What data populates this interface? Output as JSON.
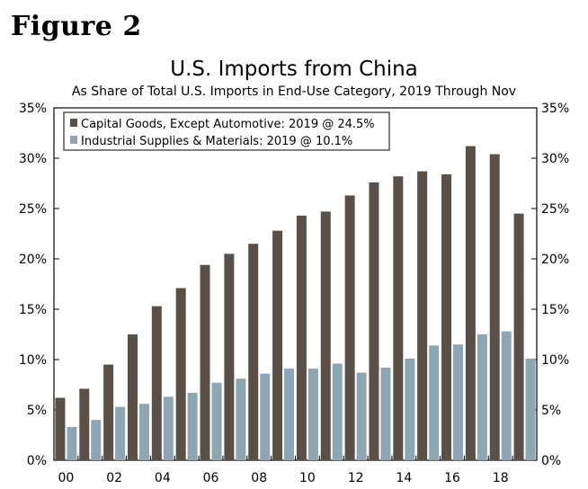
{
  "figure_label": "Figure 2",
  "chart_data": {
    "type": "bar",
    "title": "U.S. Imports from China",
    "subtitle": "As Share of Total U.S. Imports in End-Use Category, 2019 Through Nov",
    "xlabel": "",
    "ylabel": "",
    "ylim": [
      0,
      35
    ],
    "y_ticks": [
      0,
      5,
      10,
      15,
      20,
      25,
      30,
      35
    ],
    "y_tick_labels": [
      "0%",
      "5%",
      "10%",
      "15%",
      "20%",
      "25%",
      "30%",
      "35%"
    ],
    "categories": [
      "2000",
      "2001",
      "2002",
      "2003",
      "2004",
      "2005",
      "2006",
      "2007",
      "2008",
      "2009",
      "2010",
      "2011",
      "2012",
      "2013",
      "2014",
      "2015",
      "2016",
      "2017",
      "2018",
      "2019"
    ],
    "x_tick_labels": [
      "00",
      "02",
      "04",
      "06",
      "08",
      "10",
      "12",
      "14",
      "16",
      "18"
    ],
    "x_tick_category_index": [
      0,
      2,
      4,
      6,
      8,
      10,
      12,
      14,
      16,
      18
    ],
    "series": [
      {
        "name": "Capital Goods, Except Automotive: 2019 @ 24.5%",
        "color": "#5b5048",
        "values": [
          6.2,
          7.1,
          9.5,
          12.5,
          15.3,
          17.1,
          19.4,
          20.5,
          21.5,
          22.8,
          24.3,
          24.7,
          26.3,
          27.6,
          28.2,
          28.7,
          28.4,
          31.2,
          30.4,
          24.5
        ]
      },
      {
        "name": "Industrial Supplies & Materials: 2019 @ 10.1%",
        "color": "#8ea6b4",
        "values": [
          3.3,
          4.0,
          5.3,
          5.6,
          6.3,
          6.7,
          7.7,
          8.1,
          8.6,
          9.1,
          9.1,
          9.6,
          8.7,
          9.2,
          10.1,
          11.4,
          11.5,
          12.5,
          12.8,
          10.1
        ]
      }
    ],
    "legend_position": "top-left",
    "grid": false
  }
}
